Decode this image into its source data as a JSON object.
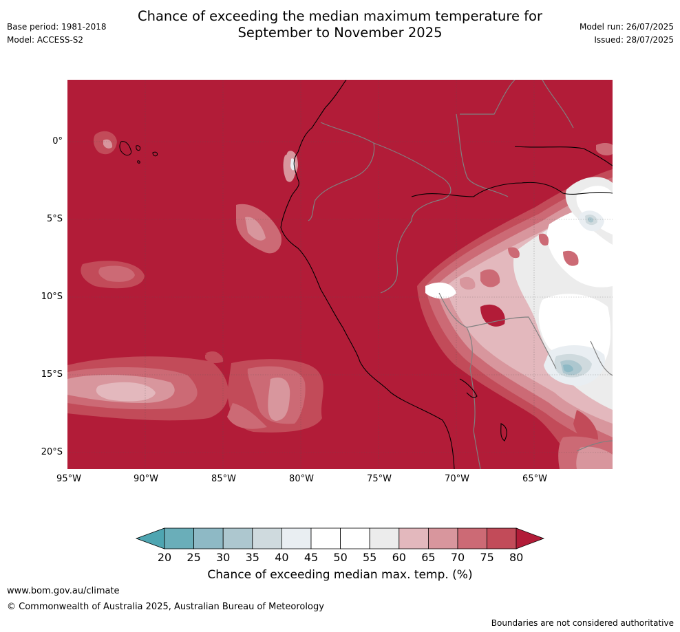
{
  "header": {
    "title_line1": "Chance of exceeding the median maximum temperature for",
    "title_line2": "September to November 2025",
    "base_period": "Base period: 1981-2018",
    "model": "Model: ACCESS-S2",
    "model_run": "Model run: 26/07/2025",
    "issued": "Issued: 28/07/2025"
  },
  "map": {
    "lat_labels": [
      "0°",
      "5°S",
      "10°S",
      "15°S",
      "20°S"
    ],
    "lon_labels": [
      "95°W",
      "90°W",
      "85°W",
      "80°W",
      "75°W",
      "70°W",
      "65°W"
    ],
    "colors": {
      "very_high": "#b21c38",
      "c75": "#c24b59",
      "c70": "#cc6a75",
      "c65": "#d8969d",
      "c60": "#e3b8bd",
      "c55": "#ececec",
      "c50": "#ffffff",
      "c45": "#e9eef2",
      "c40": "#cfdade",
      "c35": "#adc7cf",
      "c30": "#8eb9c5",
      "c25": "#6aaeb9",
      "coast": "#000000",
      "border": "#808080"
    }
  },
  "colorbar": {
    "ticks": [
      "20",
      "25",
      "30",
      "35",
      "40",
      "45",
      "50",
      "55",
      "60",
      "65",
      "70",
      "75",
      "80"
    ],
    "colors": [
      "#6aaeb9",
      "#8eb9c5",
      "#adc7cf",
      "#cfdade",
      "#e9eef2",
      "#ffffff",
      "#ffffff",
      "#ececec",
      "#e3b8bd",
      "#d8969d",
      "#cc6a75",
      "#c24b59"
    ],
    "low_color": "#4ea5b1",
    "high_color": "#b21c38",
    "label": "Chance of exceeding median max. temp. (%)"
  },
  "footer": {
    "url": "www.bom.gov.au/climate",
    "copyright": "© Commonwealth of Australia 2025, Australian Bureau of Meteorology",
    "note": "Boundaries are not considered authoritative"
  }
}
